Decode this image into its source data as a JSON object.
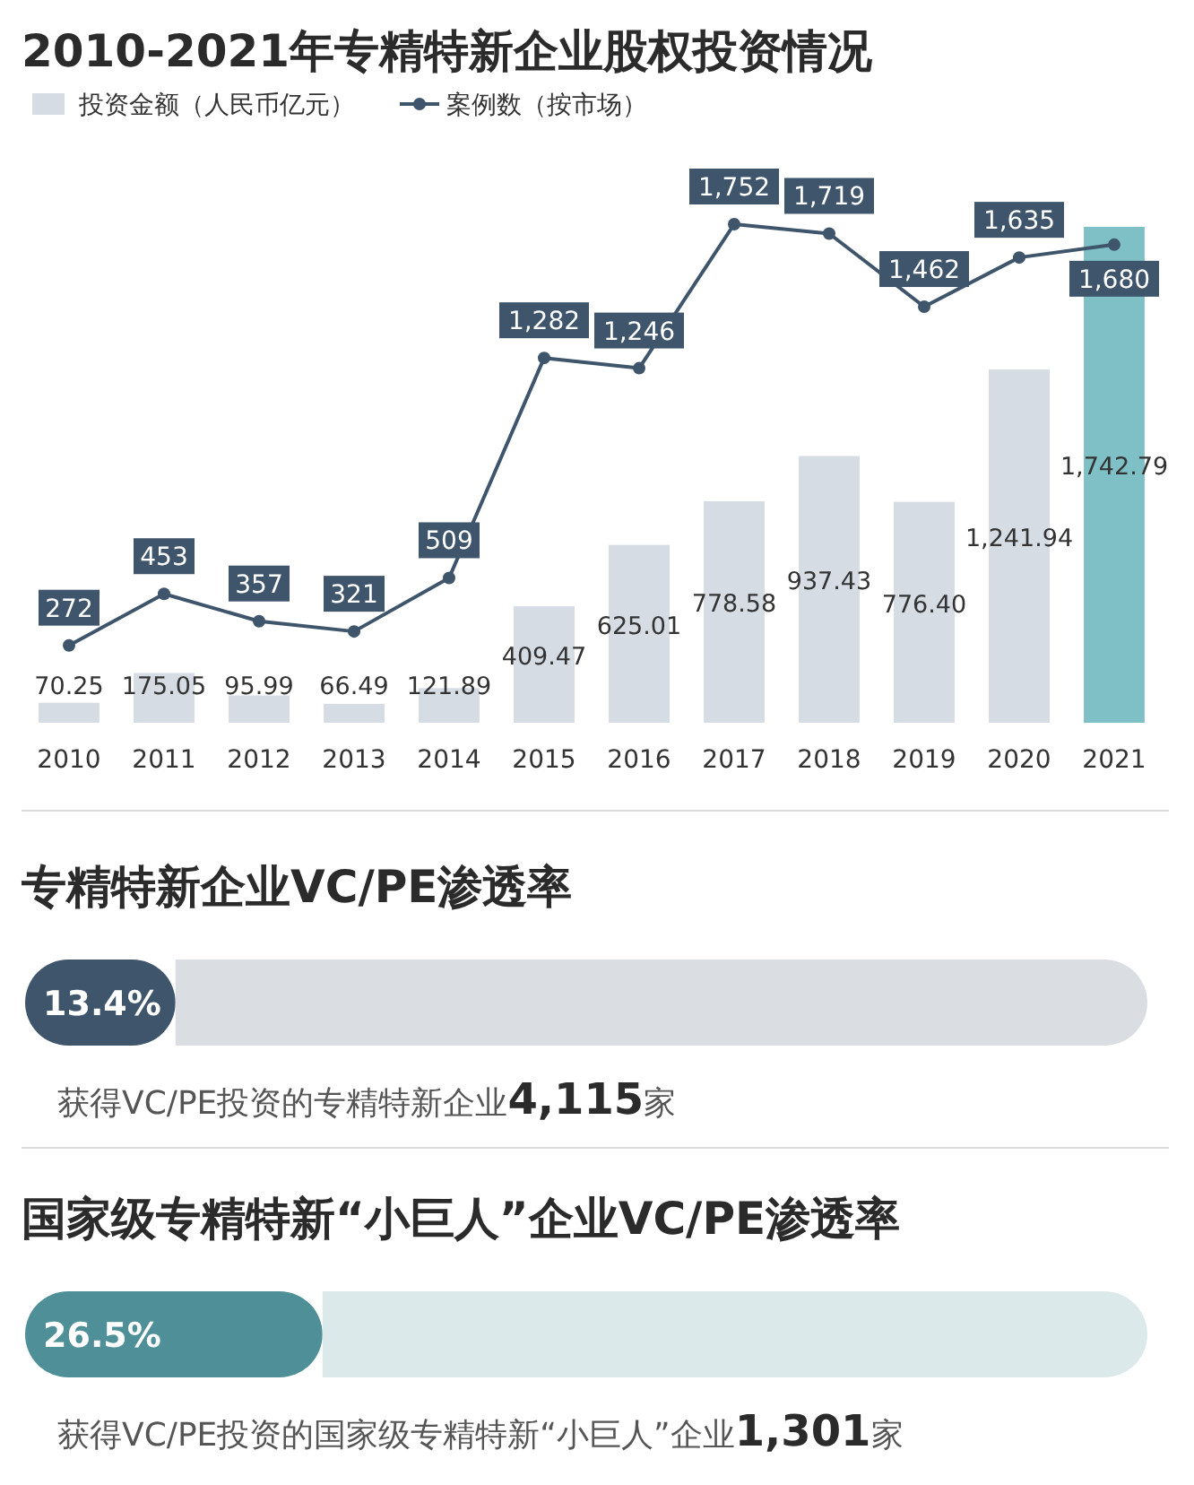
{
  "chart_data": [
    {
      "type": "bar",
      "title": "2010-2021年专精特新企业股权投资情况",
      "categories": [
        "2010",
        "2011",
        "2012",
        "2013",
        "2014",
        "2015",
        "2016",
        "2017",
        "2018",
        "2019",
        "2020",
        "2021"
      ],
      "series": [
        {
          "name": "投资金额（人民币亿元）",
          "type": "bar",
          "color": "#d5dce4",
          "colors": [
            "#d5dce4",
            "#d5dce4",
            "#d5dce4",
            "#d5dce4",
            "#d5dce4",
            "#d5dce4",
            "#d5dce4",
            "#d5dce4",
            "#d5dce4",
            "#d5dce4",
            "#d5dce4",
            "#7fc0c7"
          ],
          "values": [
            70.25,
            175.05,
            95.99,
            66.49,
            121.89,
            409.47,
            625.01,
            778.58,
            937.43,
            776.4,
            1241.94,
            1742.79
          ],
          "value_labels": [
            "70.25",
            "175.05",
            "95.99",
            "66.49",
            "121.89",
            "409.47",
            "625.01",
            "778.58",
            "937.43",
            "776.40",
            "1,241.94",
            "1,742.79"
          ]
        },
        {
          "name": "案例数（按市场）",
          "type": "line",
          "color": "#3f556b",
          "values": [
            272,
            453,
            357,
            321,
            509,
            1282,
            1246,
            1752,
            1719,
            1462,
            1635,
            1680
          ],
          "value_labels": [
            "272",
            "453",
            "357",
            "321",
            "509",
            "1,282",
            "1,246",
            "1,752",
            "1,719",
            "1,462",
            "1,635",
            "1,680"
          ]
        }
      ],
      "tick_labels": "x",
      "legend": "top left",
      "marker": "circle"
    },
    {
      "type": "bar",
      "orientation": "horizontal",
      "stacked": true,
      "title": "专精特新企业VC/PE渗透率",
      "categories": [
        null
      ],
      "series": [
        {
          "color": "#3f556b",
          "values": [
            13.4
          ],
          "value_labels": [
            "13.4%"
          ]
        },
        {
          "color": "#dadee3",
          "values": [
            86.6
          ]
        }
      ],
      "tick_labels": false,
      "annotations": [
        "获得VC/PE投资的专精特新企业4,115家"
      ]
    },
    {
      "type": "bar",
      "orientation": "horizontal",
      "stacked": true,
      "title": "国家级专精特新“小巨人”企业VC/PE渗透率",
      "categories": [
        null
      ],
      "series": [
        {
          "color": "#4f8f98",
          "values": [
            26.5
          ],
          "value_labels": [
            "26.5%"
          ]
        },
        {
          "color": "#dbe9eb",
          "values": [
            73.5
          ]
        }
      ],
      "tick_labels": false,
      "annotations": [
        "获得VC/PE投资的国家级专精特新“小巨人”企业1,301家"
      ]
    }
  ]
}
